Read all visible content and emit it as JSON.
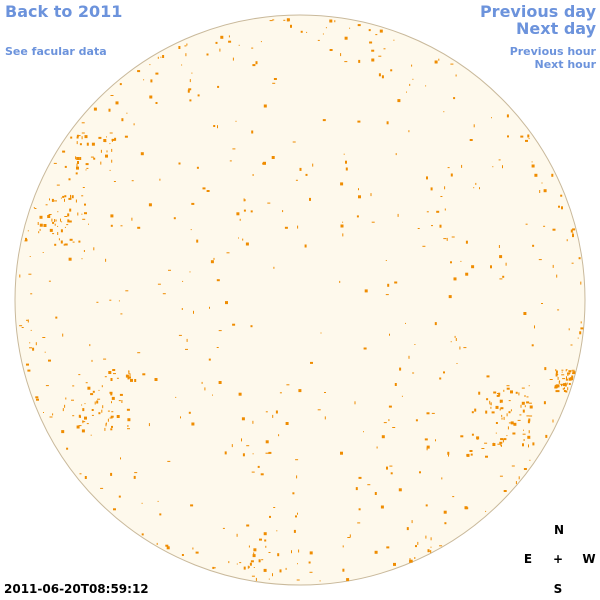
{
  "nav": {
    "back": "Back to 2011",
    "facular": "See facular data",
    "previous_day": "Previous day",
    "next_day": "Next day",
    "previous_hour": "Previous hour",
    "next_hour": "Next hour"
  },
  "timestamp": "2011-06-20T08:59:12",
  "compass": {
    "north": "N",
    "east": "E",
    "center": "+",
    "west": "W",
    "south": "S"
  }
}
